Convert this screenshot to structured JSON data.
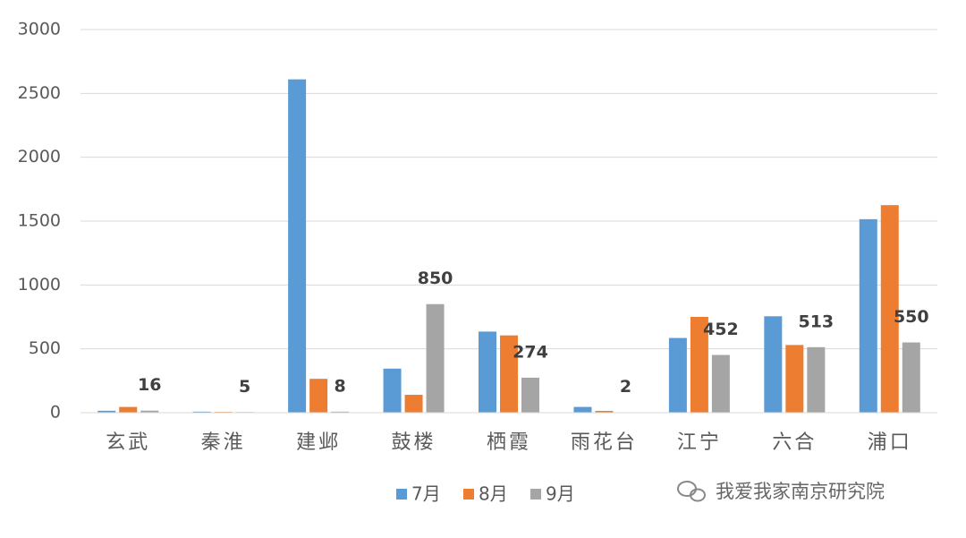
{
  "chart_data": {
    "type": "bar",
    "categories": [
      "玄武",
      "秦淮",
      "建邺",
      "鼓楼",
      "栖霞",
      "雨花台",
      "江宁",
      "六合",
      "浦口"
    ],
    "series": [
      {
        "name": "7月",
        "color": "#5b9bd5",
        "values": [
          15,
          8,
          2610,
          345,
          635,
          45,
          585,
          755,
          1515
        ]
      },
      {
        "name": "8月",
        "color": "#ed7d31",
        "values": [
          45,
          6,
          265,
          140,
          605,
          14,
          750,
          530,
          1625
        ]
      },
      {
        "name": "9月",
        "color": "#a5a5a5",
        "values": [
          16,
          5,
          8,
          850,
          274,
          2,
          452,
          513,
          550
        ],
        "data_labels": true
      }
    ],
    "ylim": [
      0,
      3000
    ],
    "yticks": [
      0,
      500,
      1000,
      1500,
      2000,
      2500,
      3000
    ],
    "grid": true,
    "legend": "bottom",
    "watermark": "我爱我家南京研究院"
  }
}
